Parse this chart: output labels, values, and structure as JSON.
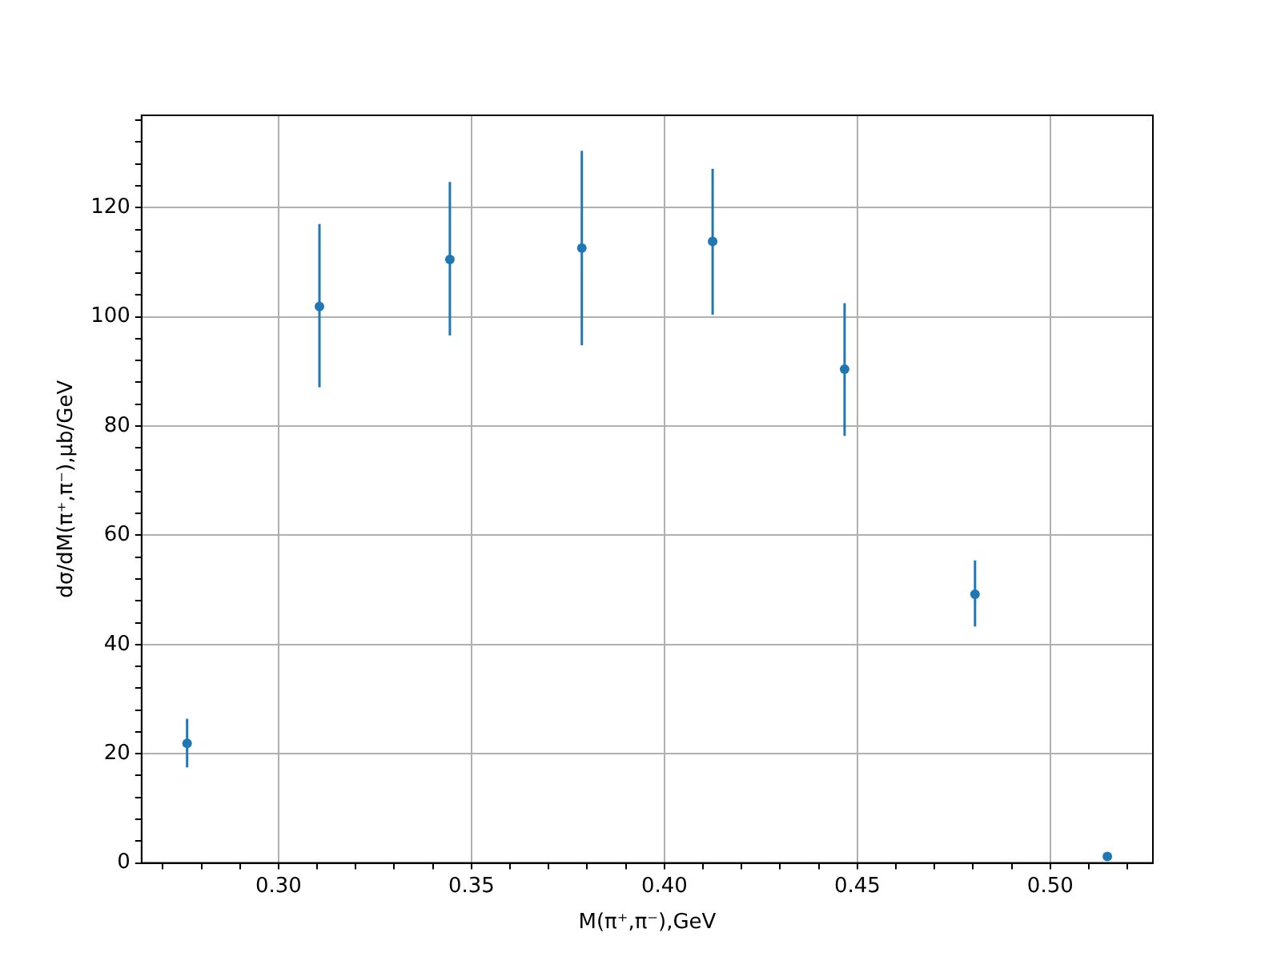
{
  "chart_data": {
    "type": "scatter",
    "xlabel": "M(π⁺,π⁻),GeV",
    "ylabel": "dσ/dM(π⁺,π⁻),μb/GeV",
    "series": [
      {
        "color": "#1f77b4",
        "x": [
          0.2763,
          0.3106,
          0.3444,
          0.3786,
          0.4125,
          0.4467,
          0.4805,
          0.5148
        ],
        "values": [
          21.9,
          101.9,
          110.5,
          112.6,
          113.8,
          90.4,
          49.2,
          1.2
        ],
        "errors": [
          [
            17.5,
            26.4
          ],
          [
            87.1,
            117.0
          ],
          [
            96.6,
            124.7
          ],
          [
            94.8,
            130.4
          ],
          [
            100.4,
            127.1
          ],
          [
            78.2,
            102.5
          ],
          [
            43.3,
            55.4
          ],
          null
        ]
      }
    ],
    "marker": "circle",
    "grid": true,
    "legend": false,
    "xlim": [
      0.2645,
      0.5266
    ],
    "ylim": [
      0,
      136.9
    ],
    "xticks": [
      {
        "value": 0.27,
        "label": null
      },
      {
        "value": 0.28,
        "label": null
      },
      {
        "value": 0.29,
        "label": null
      },
      {
        "value": 0.3,
        "label": "0.30"
      },
      {
        "value": 0.31,
        "label": null
      },
      {
        "value": 0.32,
        "label": null
      },
      {
        "value": 0.33,
        "label": null
      },
      {
        "value": 0.34,
        "label": null
      },
      {
        "value": 0.35,
        "label": "0.35"
      },
      {
        "value": 0.36,
        "label": null
      },
      {
        "value": 0.37,
        "label": null
      },
      {
        "value": 0.38,
        "label": null
      },
      {
        "value": 0.39,
        "label": null
      },
      {
        "value": 0.4,
        "label": "0.40"
      },
      {
        "value": 0.41,
        "label": null
      },
      {
        "value": 0.42,
        "label": null
      },
      {
        "value": 0.43,
        "label": null
      },
      {
        "value": 0.44,
        "label": null
      },
      {
        "value": 0.45,
        "label": "0.45"
      },
      {
        "value": 0.46,
        "label": null
      },
      {
        "value": 0.47,
        "label": null
      },
      {
        "value": 0.48,
        "label": null
      },
      {
        "value": 0.49,
        "label": null
      },
      {
        "value": 0.5,
        "label": "0.50"
      },
      {
        "value": 0.51,
        "label": null
      },
      {
        "value": 0.52,
        "label": null
      }
    ],
    "yticks": [
      0,
      {
        "value": 4,
        "label": null
      },
      {
        "value": 8,
        "label": null
      },
      {
        "value": 12,
        "label": null
      },
      {
        "value": 16,
        "label": null
      },
      20,
      {
        "value": 24,
        "label": null
      },
      {
        "value": 28,
        "label": null
      },
      {
        "value": 32,
        "label": null
      },
      {
        "value": 36,
        "label": null
      },
      40,
      {
        "value": 44,
        "label": null
      },
      {
        "value": 48,
        "label": null
      },
      {
        "value": 52,
        "label": null
      },
      {
        "value": 56,
        "label": null
      },
      60,
      {
        "value": 64,
        "label": null
      },
      {
        "value": 68,
        "label": null
      },
      {
        "value": 72,
        "label": null
      },
      {
        "value": 76,
        "label": null
      },
      80,
      {
        "value": 84,
        "label": null
      },
      {
        "value": 88,
        "label": null
      },
      {
        "value": 92,
        "label": null
      },
      {
        "value": 96,
        "label": null
      },
      100,
      {
        "value": 104,
        "label": null
      },
      {
        "value": 108,
        "label": null
      },
      {
        "value": 112,
        "label": null
      },
      {
        "value": 116,
        "label": null
      },
      120,
      {
        "value": 124,
        "label": null
      },
      {
        "value": 128,
        "label": null
      },
      {
        "value": 132,
        "label": null
      },
      {
        "value": 136,
        "label": null
      }
    ]
  }
}
